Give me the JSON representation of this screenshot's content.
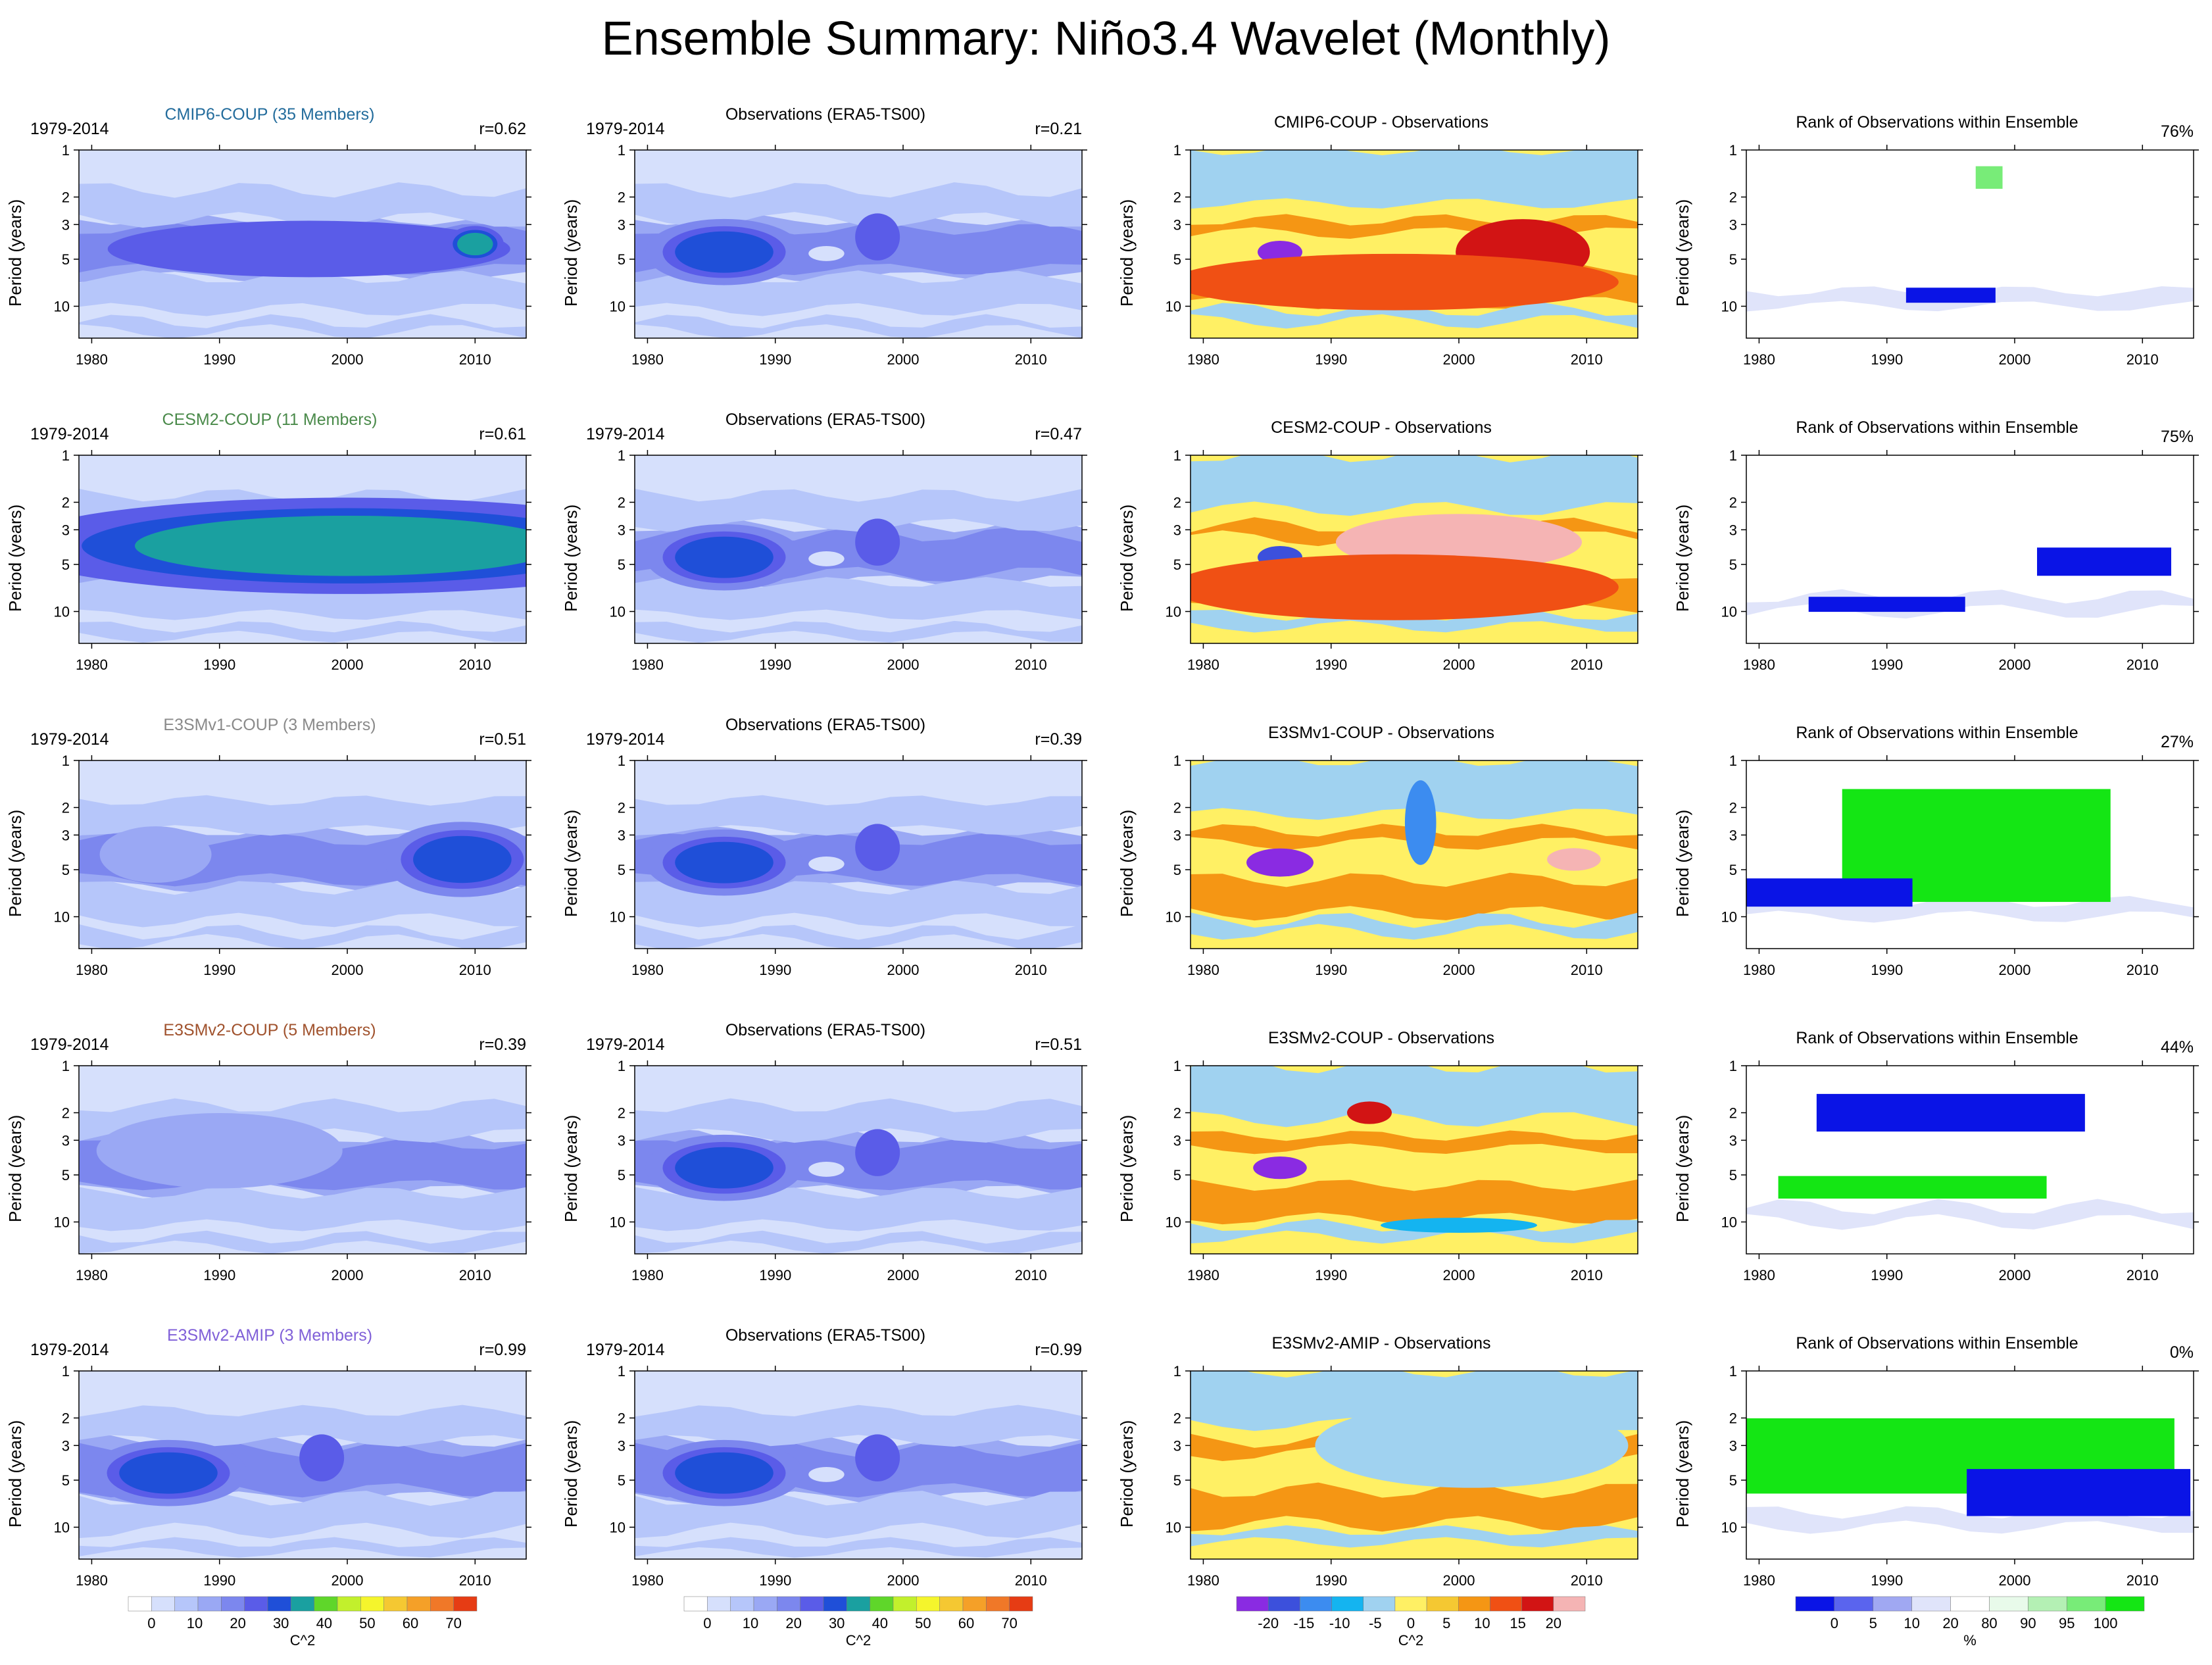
{
  "title": "Ensemble Summary: Niño3.4 Wavelet (Monthly)",
  "colors": {
    "power": [
      "#ffffff",
      "#d6e0fc",
      "#b6c6fa",
      "#9aa8f4",
      "#7c87ee",
      "#5a5ce8",
      "#1f4fd8",
      "#1aa0a0",
      "#5fd62a",
      "#c2f02c",
      "#f5f52c",
      "#f5c832",
      "#f5a028",
      "#f07828",
      "#e63c14"
    ],
    "diff": [
      "#8a2be2",
      "#3c50dc",
      "#3c8cf0",
      "#14b4f0",
      "#a0d2f0",
      "#fff064",
      "#f5c832",
      "#f59614",
      "#f05014",
      "#d21414",
      "#f5b4b4"
    ],
    "rank": [
      "#0a14e6",
      "#5a64ee",
      "#a0a8f2",
      "#e0e4fa",
      "#ffffff",
      "#e8faea",
      "#b4f0b4",
      "#78ec78",
      "#14e614"
    ]
  },
  "row_titles": [
    {
      "model": "CMIP6-COUP (35 Members)",
      "model_color": "#236c9c",
      "diff_title": "CMIP6-COUP - Observations",
      "r_model": "r=0.62",
      "r_obs": "r=0.21",
      "rank_pct": "76%"
    },
    {
      "model": "CESM2-COUP (11 Members)",
      "model_color": "#4a8a4a",
      "diff_title": "CESM2-COUP - Observations",
      "r_model": "r=0.61",
      "r_obs": "r=0.47",
      "rank_pct": "75%"
    },
    {
      "model": "E3SMv1-COUP (3 Members)",
      "model_color": "#8a8a8a",
      "diff_title": "E3SMv1-COUP - Observations",
      "r_model": "r=0.51",
      "r_obs": "r=0.39",
      "rank_pct": "27%"
    },
    {
      "model": "E3SMv2-COUP (5 Members)",
      "model_color": "#a0522d",
      "diff_title": "E3SMv2-COUP - Observations",
      "r_model": "r=0.39",
      "r_obs": "r=0.51",
      "rank_pct": "44%"
    },
    {
      "model": "E3SMv2-AMIP (3 Members)",
      "model_color": "#8060d8",
      "diff_title": "E3SMv2-AMIP - Observations",
      "r_model": "r=0.99",
      "r_obs": "r=0.99",
      "rank_pct": "0%"
    }
  ],
  "common": {
    "period_label": "1979-2014",
    "obs_title": "Observations (ERA5-TS00)",
    "rank_title": "Rank of Observations within Ensemble",
    "ylabel": "Period (years)"
  },
  "chart_data": {
    "type": "heatmap",
    "xlim": [
      1979,
      2014
    ],
    "x_ticks": [
      "1980",
      "1990",
      "2000",
      "2010"
    ],
    "x_tick_values": [
      1980,
      1990,
      2000,
      2010
    ],
    "ylim": [
      1,
      16
    ],
    "y_ticks": [
      "1",
      "2",
      "3",
      "5",
      "10"
    ],
    "y_tick_values": [
      1,
      2,
      3,
      5,
      10
    ],
    "colorbars": [
      {
        "units": "C^2",
        "labels": [
          "0",
          "10",
          "20",
          "30",
          "40",
          "50",
          "60",
          "70"
        ],
        "levels": [
          0,
          10,
          20,
          30,
          40,
          50,
          60,
          70
        ]
      },
      {
        "units": "C^2",
        "labels": [
          "0",
          "10",
          "20",
          "30",
          "40",
          "50",
          "60",
          "70"
        ],
        "levels": [
          0,
          10,
          20,
          30,
          40,
          50,
          60,
          70
        ]
      },
      {
        "units": "C^2",
        "labels": [
          "-20",
          "-15",
          "-10",
          "-5",
          "0",
          "5",
          "10",
          "15",
          "20"
        ],
        "levels": [
          -20,
          -15,
          -10,
          -5,
          0,
          5,
          10,
          15,
          20
        ]
      },
      {
        "units": "%",
        "labels": [
          "0",
          "5",
          "10",
          "20",
          "80",
          "90",
          "95",
          "100"
        ],
        "levels": [
          0,
          5,
          10,
          20,
          80,
          90,
          95,
          100
        ]
      }
    ],
    "features": {
      "model": [
        [
          {
            "year": 1997,
            "period": 4.3,
            "level": 5,
            "w": 0.9,
            "h": 0.3
          },
          {
            "year": 2010,
            "period": 4.0,
            "level": 7,
            "w": 0.08,
            "h": 0.12
          }
        ],
        [
          {
            "year": 1996,
            "period": 3.6,
            "level": 10,
            "w": 0.16,
            "h": 0.16
          },
          {
            "year": 2011,
            "period": 3.9,
            "level": 10,
            "w": 0.12,
            "h": 0.15
          },
          {
            "year": 2000,
            "period": 3.8,
            "level": 7,
            "w": 0.95,
            "h": 0.32
          }
        ],
        [
          {
            "year": 2010,
            "period": 4.3,
            "level": 9,
            "w": 0.12,
            "h": 0.12
          },
          {
            "year": 2009,
            "period": 4.3,
            "level": 6,
            "w": 0.22,
            "h": 0.25
          },
          {
            "year": 1985,
            "period": 4.0,
            "level": 3,
            "w": 0.25,
            "h": 0.3
          }
        ],
        [
          {
            "year": 1997,
            "period": 4.0,
            "level": 4,
            "w": 0.12,
            "h": 0.2
          },
          {
            "year": 1990,
            "period": 3.5,
            "level": 3,
            "w": 0.55,
            "h": 0.4
          }
        ],
        [
          {
            "year": 1986,
            "period": 4.5,
            "level": 9,
            "w": 0.1,
            "h": 0.12
          },
          {
            "year": 1986,
            "period": 4.5,
            "level": 6,
            "w": 0.22,
            "h": 0.22
          },
          {
            "year": 1998,
            "period": 3.6,
            "level": 5,
            "w": 0.1,
            "h": 0.25
          }
        ]
      ],
      "obs": [
        {
          "year": 1986,
          "period": 4.5,
          "level": 9,
          "w": 0.1,
          "h": 0.12
        },
        {
          "year": 1986,
          "period": 4.5,
          "level": 6,
          "w": 0.22,
          "h": 0.22
        },
        {
          "year": 1998,
          "period": 3.6,
          "level": 5,
          "w": 0.1,
          "h": 0.25
        },
        {
          "year": 1994,
          "period": 4.6,
          "level": 1,
          "w": 0.08,
          "h": 0.08
        }
      ],
      "diff": [
        [
          {
            "year": 1986,
            "period": 4.5,
            "level": 0,
            "w": 0.1,
            "h": 0.12
          },
          {
            "year": 2005,
            "period": 4.5,
            "level": 9,
            "w": 0.3,
            "h": 0.35
          },
          {
            "year": 1995,
            "period": 7.0,
            "level": 8,
            "w": 1.0,
            "h": 0.3
          }
        ],
        [
          {
            "year": 2000,
            "period": 3.6,
            "level": 10,
            "w": 0.55,
            "h": 0.3
          },
          {
            "year": 1986,
            "period": 4.5,
            "level": 1,
            "w": 0.1,
            "h": 0.12
          },
          {
            "year": 1995,
            "period": 7.0,
            "level": 8,
            "w": 1.0,
            "h": 0.35
          }
        ],
        [
          {
            "year": 1986,
            "period": 4.5,
            "level": 0,
            "w": 0.15,
            "h": 0.15
          },
          {
            "year": 2009,
            "period": 4.3,
            "level": 10,
            "w": 0.12,
            "h": 0.12
          },
          {
            "year": 1997,
            "period": 2.5,
            "level": 2,
            "w": 0.07,
            "h": 0.45
          }
        ],
        [
          {
            "year": 1986,
            "period": 4.5,
            "level": 0,
            "w": 0.12,
            "h": 0.12
          },
          {
            "year": 1993,
            "period": 2.0,
            "level": 9,
            "w": 0.1,
            "h": 0.12
          },
          {
            "year": 2000,
            "period": 10.5,
            "level": 3,
            "w": 0.35,
            "h": 0.08
          }
        ],
        [
          {
            "year": 2001,
            "period": 3.0,
            "level": 4,
            "w": 0.7,
            "h": 0.45
          }
        ]
      ],
      "rank": [
        [
          {
            "year": 1995,
            "period": 8.5,
            "level": 0,
            "w": 0.2,
            "h": 0.08
          },
          {
            "year": 1998,
            "period": 1.5,
            "level": 7,
            "w": 0.06,
            "h": 0.12
          }
        ],
        [
          {
            "year": 2007,
            "period": 4.8,
            "level": 0,
            "w": 0.3,
            "h": 0.15
          },
          {
            "year": 1990,
            "period": 9.0,
            "level": 0,
            "w": 0.35,
            "h": 0.08
          }
        ],
        [
          {
            "year": 1997,
            "period": 3.5,
            "level": 8,
            "w": 0.6,
            "h": 0.6
          },
          {
            "year": 1985,
            "period": 7.0,
            "level": 0,
            "w": 0.4,
            "h": 0.15
          }
        ],
        [
          {
            "year": 1992,
            "period": 6.0,
            "level": 8,
            "w": 0.6,
            "h": 0.12
          },
          {
            "year": 1995,
            "period": 2.0,
            "level": 0,
            "w": 0.6,
            "h": 0.2
          }
        ],
        [
          {
            "year": 1995,
            "period": 3.5,
            "level": 8,
            "w": 1.0,
            "h": 0.4
          },
          {
            "year": 2005,
            "period": 6.0,
            "level": 0,
            "w": 0.5,
            "h": 0.25
          }
        ]
      ]
    }
  }
}
